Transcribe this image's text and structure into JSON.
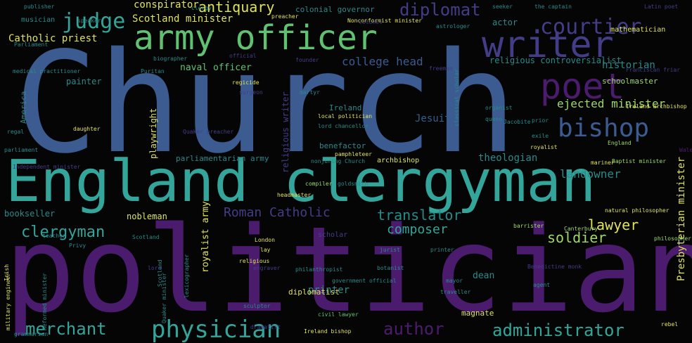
{
  "colors": {
    "background": "#050505",
    "purple": "#4b1c6e",
    "indigo": "#433d87",
    "blue": "#3b5b91",
    "slate": "#355f8d",
    "teal": "#2a8a8a",
    "aqua": "#33a59a",
    "green": "#61c172",
    "lime": "#9ed86a",
    "yellow": "#e0e35a"
  },
  "words": [
    {
      "text": "Church"
    },
    {
      "text": "politician"
    },
    {
      "text": "England clergyman"
    },
    {
      "text": "army officer"
    },
    {
      "text": "writer"
    },
    {
      "text": "poet"
    },
    {
      "text": "bishop"
    },
    {
      "text": "courtier"
    },
    {
      "text": "judge"
    },
    {
      "text": "diplomat"
    },
    {
      "text": "antiquary"
    },
    {
      "text": "conspirator"
    },
    {
      "text": "Scotland minister"
    },
    {
      "text": "Catholic priest"
    },
    {
      "text": "colonial governor"
    },
    {
      "text": "historian"
    },
    {
      "text": "mathematician"
    },
    {
      "text": "college head"
    },
    {
      "text": "religious controversialist"
    },
    {
      "text": "naval officer"
    },
    {
      "text": "schoolmaster"
    },
    {
      "text": "ejected minister"
    },
    {
      "text": "merchant"
    },
    {
      "text": "physician"
    },
    {
      "text": "author"
    },
    {
      "text": "administrator"
    },
    {
      "text": "lawyer"
    },
    {
      "text": "soldier"
    },
    {
      "text": "Roman Catholic"
    },
    {
      "text": "translator"
    },
    {
      "text": "clergyman"
    },
    {
      "text": "composer"
    },
    {
      "text": "landowner"
    },
    {
      "text": "theologian"
    },
    {
      "text": "bookseller"
    },
    {
      "text": "nobleman"
    },
    {
      "text": "parliamentarian army"
    },
    {
      "text": "Presbyterian minister"
    },
    {
      "text": "printer"
    },
    {
      "text": "dean"
    },
    {
      "text": "magnate"
    },
    {
      "text": "Jesuit"
    },
    {
      "text": "benefactor"
    },
    {
      "text": "archbishop"
    },
    {
      "text": "painter"
    },
    {
      "text": "actor"
    },
    {
      "text": "musician"
    },
    {
      "text": "Ireland"
    },
    {
      "text": "playwright"
    },
    {
      "text": "religious writer"
    },
    {
      "text": "royalist army"
    },
    {
      "text": "America"
    },
    {
      "text": "natural philosopher"
    },
    {
      "text": "barrister"
    },
    {
      "text": "Canterbury"
    },
    {
      "text": "philosopher"
    },
    {
      "text": "scholar"
    },
    {
      "text": "engraver"
    },
    {
      "text": "botanist"
    },
    {
      "text": "diplomatist"
    },
    {
      "text": "civil lawyer"
    },
    {
      "text": "Quaker preacher"
    },
    {
      "text": "Ireland archbishop"
    },
    {
      "text": "Franciscan friar"
    },
    {
      "text": "Latin poet"
    },
    {
      "text": "local politician"
    },
    {
      "text": "lord chancellor"
    },
    {
      "text": "pamphleteer"
    },
    {
      "text": "nonjuring Church"
    },
    {
      "text": "compiler"
    },
    {
      "text": "goldsmith"
    },
    {
      "text": "headmaster"
    },
    {
      "text": "biographer"
    },
    {
      "text": "official"
    },
    {
      "text": "founder"
    },
    {
      "text": "publisher"
    },
    {
      "text": "preacher"
    },
    {
      "text": "Nonconformist minister"
    },
    {
      "text": "astrologer"
    },
    {
      "text": "daughter"
    },
    {
      "text": "Independent minister"
    },
    {
      "text": "parliament"
    },
    {
      "text": "Ireland bishop"
    },
    {
      "text": "government official"
    },
    {
      "text": "Baptist minister"
    },
    {
      "text": "royalist"
    },
    {
      "text": "agent"
    },
    {
      "text": "Scotland"
    },
    {
      "text": "lexicographer"
    },
    {
      "text": "Wales"
    },
    {
      "text": "grammarian"
    },
    {
      "text": "rebel"
    },
    {
      "text": "London"
    },
    {
      "text": "surgeon"
    },
    {
      "text": "martyr"
    },
    {
      "text": "Jacobite"
    },
    {
      "text": "organist"
    },
    {
      "text": "queen"
    },
    {
      "text": "prior"
    },
    {
      "text": "exile"
    },
    {
      "text": "England"
    },
    {
      "text": "mariner"
    },
    {
      "text": "classical scholar"
    },
    {
      "text": "military engineer"
    },
    {
      "text": "Quaker minister"
    },
    {
      "text": "Reformed minister"
    },
    {
      "text": "Benedictine monk"
    },
    {
      "text": "traveller"
    },
    {
      "text": "sculptor"
    },
    {
      "text": "dramatist"
    },
    {
      "text": "philanthropist"
    },
    {
      "text": "jurist"
    },
    {
      "text": "printer"
    },
    {
      "text": "lay"
    },
    {
      "text": "religious"
    },
    {
      "text": "teacher"
    },
    {
      "text": "Privy"
    },
    {
      "text": "colonel"
    },
    {
      "text": "regicide"
    },
    {
      "text": "Scotland"
    },
    {
      "text": "lord"
    },
    {
      "text": "regal"
    },
    {
      "text": "medical practitioner"
    },
    {
      "text": "Irish"
    },
    {
      "text": "speaker"
    },
    {
      "text": "Puritan"
    },
    {
      "text": "freeman"
    },
    {
      "text": "mayor"
    },
    {
      "text": "Parliament"
    },
    {
      "text": "clergy"
    },
    {
      "text": "the captain"
    },
    {
      "text": "seeker"
    }
  ]
}
